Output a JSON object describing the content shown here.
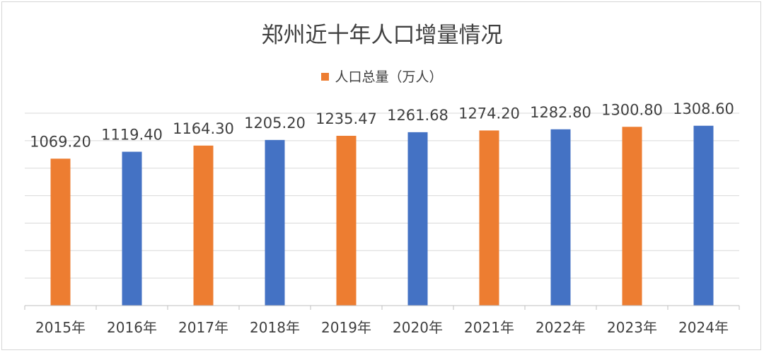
{
  "chart_data": {
    "type": "bar",
    "title": "郑州近十年人口增量情况",
    "categories": [
      "2015年",
      "2016年",
      "2017年",
      "2018年",
      "2019年",
      "2020年",
      "2021年",
      "2022年",
      "2023年",
      "2024年"
    ],
    "series": [
      {
        "name": "人口总量（万人）",
        "values": [
          1069.2,
          1119.4,
          1164.3,
          1205.2,
          1235.47,
          1261.68,
          1274.2,
          1282.8,
          1300.8,
          1308.6
        ]
      }
    ],
    "data_labels": [
      "1069.20",
      "1119.40",
      "1164.30",
      "1205.20",
      "1235.47",
      "1261.68",
      "1274.20",
      "1282.80",
      "1300.80",
      "1308.60"
    ],
    "bar_colors": [
      "#ED7D31",
      "#4472C4",
      "#ED7D31",
      "#4472C4",
      "#ED7D31",
      "#4472C4",
      "#ED7D31",
      "#4472C4",
      "#ED7D31",
      "#4472C4"
    ],
    "legend_color": "#ED7D31",
    "legend_position": "top",
    "ylim": [
      0,
      1400
    ],
    "gridlines": true,
    "xlabel": "",
    "ylabel": ""
  }
}
